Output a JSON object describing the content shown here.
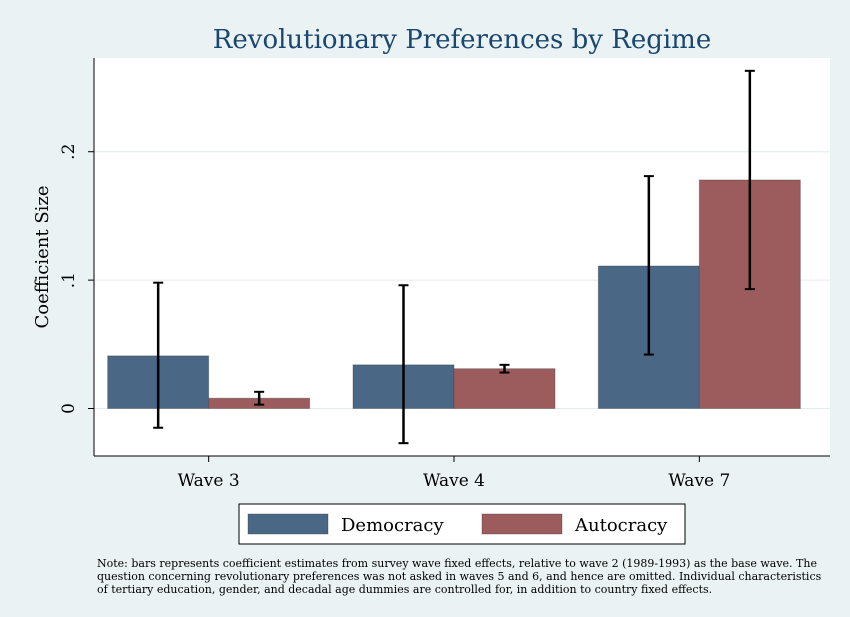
{
  "chart_data": {
    "type": "bar",
    "title": "Revolutionary Preferences by Regime",
    "ylabel": "Coefficient Size",
    "xlabel": "",
    "categories": [
      "Wave 3",
      "Wave 4",
      "Wave 7"
    ],
    "series": [
      {
        "name": "Democracy",
        "color": "#4a6885",
        "values": [
          0.041,
          0.034,
          0.111
        ],
        "ci_low": [
          -0.015,
          -0.027,
          0.042
        ],
        "ci_high": [
          0.098,
          0.096,
          0.181
        ]
      },
      {
        "name": "Autocracy",
        "color": "#9c5c5e",
        "values": [
          0.008,
          0.031,
          0.178
        ],
        "ci_low": [
          0.003,
          0.028,
          0.093
        ],
        "ci_high": [
          0.013,
          0.034,
          0.263
        ]
      }
    ],
    "yticks": [
      0,
      0.1,
      0.2
    ],
    "ytick_labels": [
      "0",
      ".1",
      ".2"
    ],
    "ylim": [
      -0.037,
      0.273
    ],
    "grid": true,
    "legend_position": "bottom"
  },
  "note": "Note: bars represents coefficient estimates from survey wave fixed effects, relative to wave 2 (1989-1993) as the base wave. The question concerning revolutionary preferences was not asked in waves 5 and 6, and hence are omitted. Individual characteristics of tertiary education, gender, and decadal age dummies are controlled for, in addition to country fixed effects."
}
